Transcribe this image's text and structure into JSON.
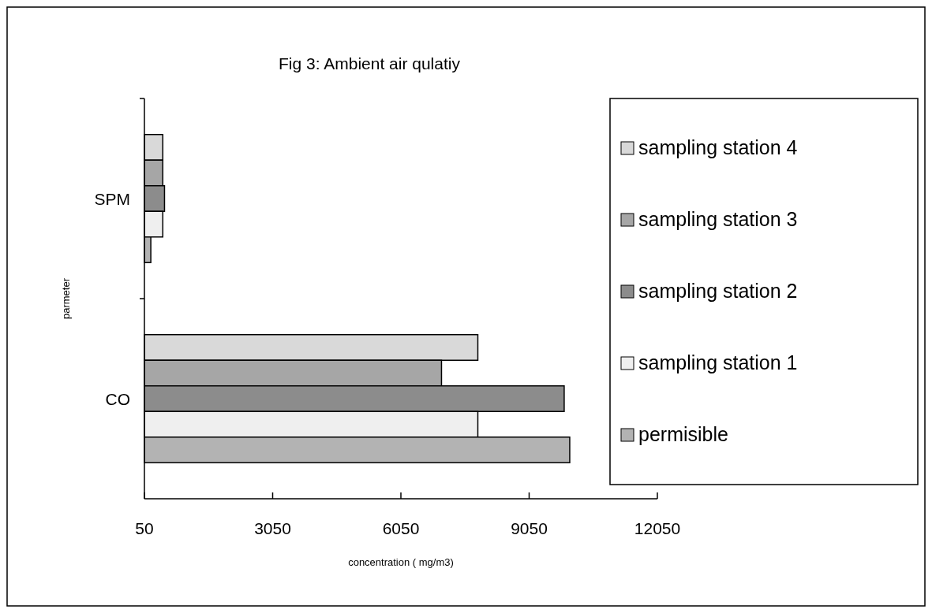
{
  "chart_data": {
    "type": "bar",
    "orientation": "horizontal",
    "title": "Fig 3: Ambient air qulatiy",
    "xlabel": "concentration ( mg/m3)",
    "ylabel": "parmeter",
    "categories": [
      "SPM",
      "CO"
    ],
    "series": [
      {
        "name": "sampling station 4",
        "color": "#d9d9d9",
        "values": [
          480,
          7850
        ]
      },
      {
        "name": "sampling station 3",
        "color": "#a6a6a6",
        "values": [
          480,
          7000
        ]
      },
      {
        "name": "sampling station 2",
        "color": "#8c8c8c",
        "values": [
          520,
          9870
        ]
      },
      {
        "name": "sampling station 1",
        "color": "#efefef",
        "values": [
          480,
          7850
        ]
      },
      {
        "name": "permisible",
        "color": "#b3b3b3",
        "values": [
          200,
          10000
        ]
      }
    ],
    "xlim": [
      50,
      12050
    ],
    "xticks": [
      50,
      3050,
      6050,
      9050,
      12050
    ],
    "grid": false,
    "legend": "right"
  }
}
